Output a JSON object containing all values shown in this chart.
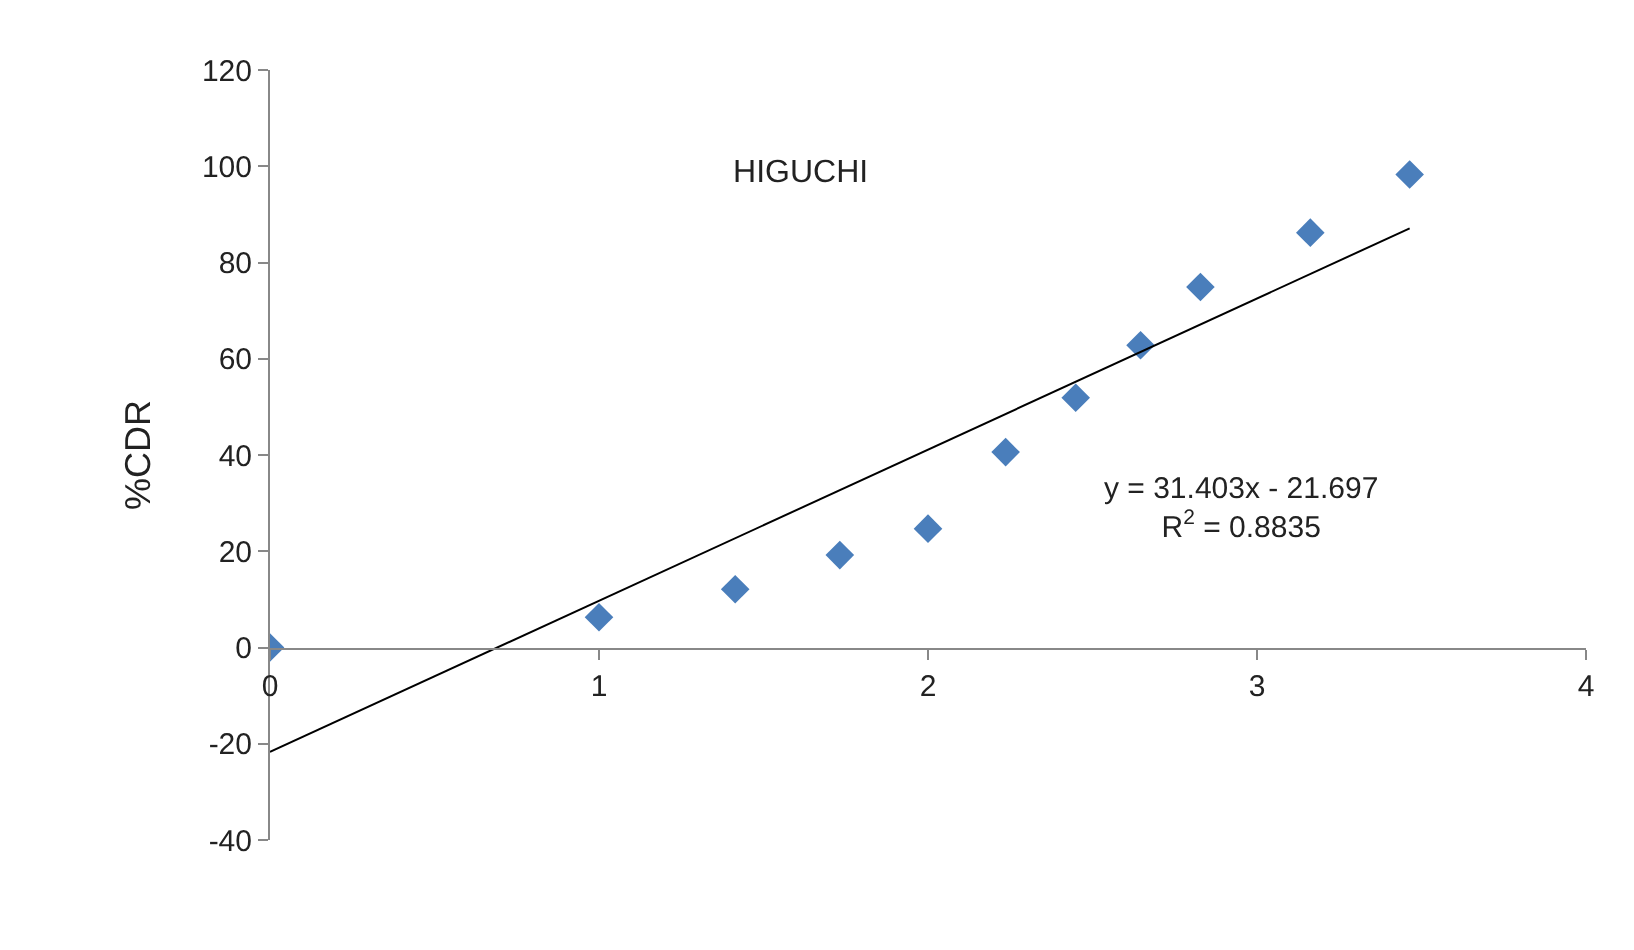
{
  "chart_data": {
    "type": "scatter",
    "title": "HIGUCHI",
    "ylabel": "%CDR",
    "x": [
      0,
      1,
      1.414,
      1.732,
      2,
      2.236,
      2.449,
      2.646,
      2.828,
      3.162,
      3.464
    ],
    "series": [
      {
        "color": "#4a7ebb",
        "values": [
          0,
          6.3,
          12.1,
          19.2,
          24.7,
          40.6,
          51.9,
          62.8,
          74.9,
          86.2,
          98.3
        ]
      },
      {
        "type": "line",
        "marker": "none",
        "color": "#000000",
        "x": [
          0,
          3.464
        ],
        "values": [
          -21.7,
          87.1
        ]
      }
    ],
    "marker": "diamond",
    "xlim": [
      0,
      4
    ],
    "xticks": [
      0,
      1,
      2,
      3,
      4
    ],
    "ylim": [
      -40,
      120
    ],
    "yticks": [
      -40,
      -20,
      0,
      20,
      40,
      60,
      80,
      100,
      120
    ],
    "annotations": [
      "y = 31.403x - 21.697\nR$^{2}$ = 0.8835"
    ]
  }
}
